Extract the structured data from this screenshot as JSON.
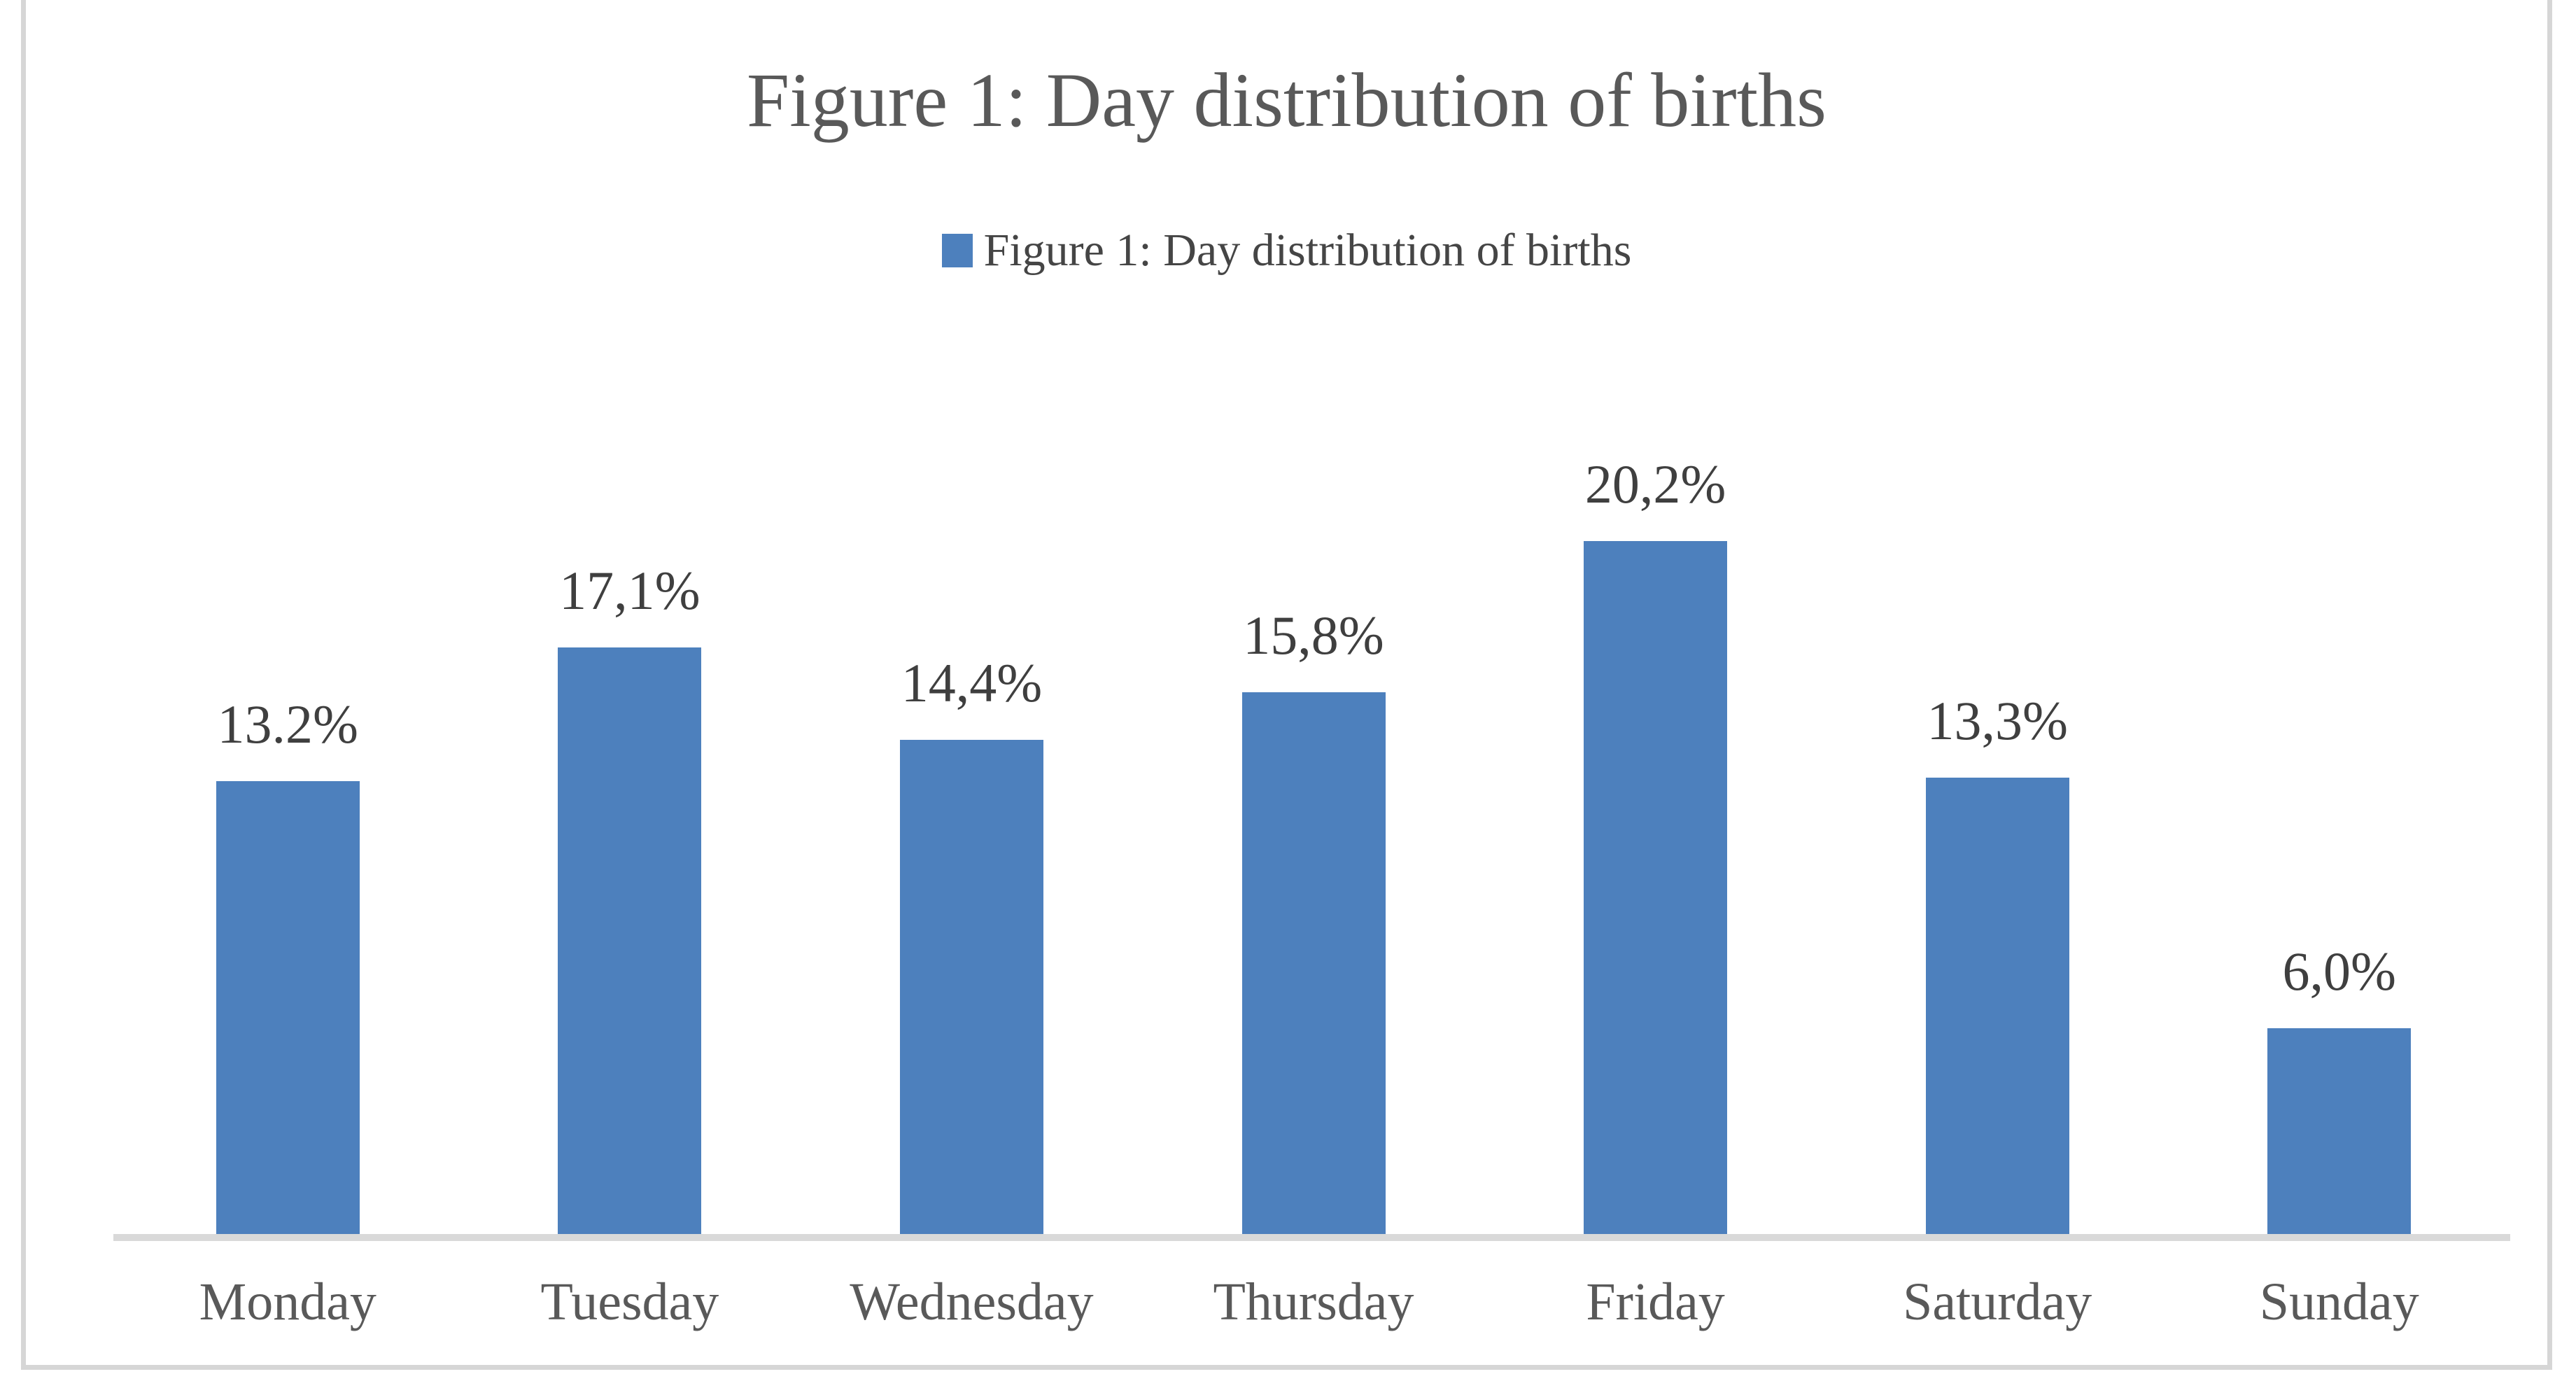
{
  "chart_title": "Figure 1: Day distribution of births",
  "legend": {
    "label": "Figure 1: Day distribution of births",
    "position": "top",
    "swatch_color": "#4d80bd"
  },
  "chart_data": {
    "type": "bar",
    "title": "Figure 1: Day distribution of births",
    "categories": [
      "Monday",
      "Tuesday",
      "Wednesday",
      "Thursday",
      "Friday",
      "Saturday",
      "Sunday"
    ],
    "series": [
      {
        "name": "Figure 1: Day distribution of births",
        "values": [
          13.2,
          17.1,
          14.4,
          15.8,
          20.2,
          13.3,
          6.0
        ],
        "data_labels": [
          "13.2%",
          "17,1%",
          "14,4%",
          "15,8%",
          "20,2%",
          "13,3%",
          "6,0%"
        ]
      }
    ],
    "xlabel": "",
    "ylabel": "",
    "ylim": [
      0,
      25
    ],
    "y_axis_visible": false,
    "gridlines": false,
    "data_labels_visible": true,
    "legend_position": "top",
    "bar_color": "#4d80bd",
    "axis_line_color": "#d9d9d9"
  },
  "style": {
    "background": "#ffffff",
    "frame_border_color": "#d6d6d6",
    "title_color": "#595959",
    "data_label_color": "#3f3f3f",
    "category_label_color": "#595959",
    "legend_text_color": "#454545"
  }
}
